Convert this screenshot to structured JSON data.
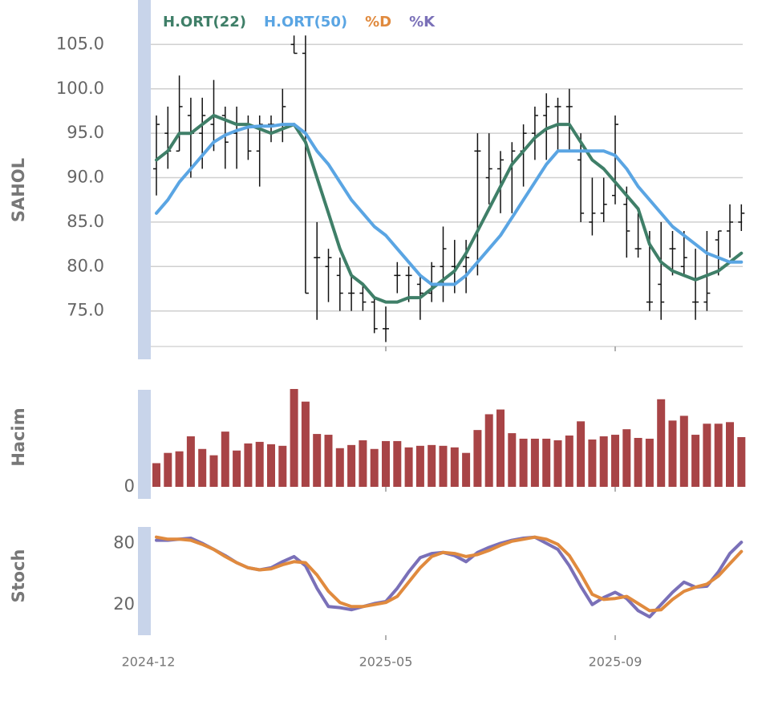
{
  "chart_data": [
    {
      "type": "ohlc",
      "ylabel": "SAHOL",
      "ylim": [
        71,
        110
      ],
      "yticks": [
        {
          "value": 75,
          "label": "75.0"
        },
        {
          "value": 80,
          "label": "80.0"
        },
        {
          "value": 85,
          "label": "85.0"
        },
        {
          "value": 90,
          "label": "90.0"
        },
        {
          "value": 95,
          "label": "95.0"
        },
        {
          "value": 100,
          "label": "100.0"
        },
        {
          "value": 105,
          "label": "105.0"
        }
      ],
      "grid": true,
      "color": "#111111",
      "open": [
        91,
        95,
        93,
        97,
        95,
        96,
        97,
        95,
        96,
        93,
        96,
        96,
        105,
        104,
        81,
        80,
        79,
        77,
        77,
        76,
        73,
        79,
        79,
        78,
        77,
        80,
        80,
        80,
        93,
        90,
        91,
        91,
        93,
        95,
        97,
        98,
        98,
        92,
        85,
        86,
        88,
        87,
        82,
        76,
        78,
        82,
        80,
        76,
        76,
        83,
        84,
        85
      ],
      "high": [
        97,
        98,
        101.5,
        99,
        99,
        101,
        98,
        98,
        97,
        97,
        97,
        100,
        106,
        106,
        85,
        82,
        81,
        79,
        78,
        76.5,
        75.5,
        80.5,
        80,
        79,
        80.5,
        84.5,
        83,
        83,
        95,
        95,
        93,
        94,
        96,
        98,
        99.5,
        99,
        100,
        95,
        90,
        90,
        97,
        89,
        86,
        84,
        85,
        84,
        84,
        82,
        84,
        84,
        87,
        87
      ],
      "low": [
        88,
        91,
        93,
        90,
        91,
        93,
        91,
        91,
        92,
        89,
        94,
        94,
        104,
        77,
        74,
        76,
        75,
        75,
        75,
        72.5,
        71.5,
        77,
        76,
        74,
        76,
        76,
        77,
        77,
        79,
        87,
        86,
        86,
        89,
        92,
        92,
        93,
        93,
        85,
        83.5,
        85,
        87,
        81,
        81,
        75,
        74,
        79,
        79,
        74,
        75,
        79,
        81,
        84
      ],
      "close": [
        96,
        93,
        98,
        95,
        97,
        97,
        94,
        96,
        93,
        96,
        96,
        98,
        104,
        77,
        81,
        81,
        77,
        77,
        76,
        73,
        73,
        79,
        79,
        77,
        80,
        82,
        80,
        81,
        93,
        91,
        92,
        93,
        95,
        97,
        98,
        98,
        98,
        86,
        86,
        87,
        96,
        84,
        82,
        76,
        76,
        82,
        81,
        76,
        77,
        84,
        85,
        86
      ],
      "series": [
        {
          "name": "H.ORT(22)",
          "color": "#3f7f68",
          "values": [
            92,
            93,
            95,
            95,
            96,
            97,
            96.5,
            96,
            96,
            95.5,
            95,
            95.5,
            96,
            94,
            90,
            86,
            82,
            79,
            78,
            76.5,
            76,
            76,
            76.5,
            76.5,
            77.5,
            78.5,
            79.5,
            81.5,
            84,
            86.5,
            89,
            91.5,
            93,
            94.5,
            95.5,
            96,
            96,
            94,
            92,
            91,
            89.5,
            88,
            86.5,
            82.5,
            80.5,
            79.5,
            79,
            78.5,
            79,
            79.5,
            80.5,
            81.5
          ]
        },
        {
          "name": "H.ORT(50)",
          "color": "#5aa5e3",
          "values": [
            86,
            87.5,
            89.5,
            91,
            92.5,
            94,
            94.8,
            95.3,
            95.7,
            95.8,
            95.8,
            96,
            96,
            95,
            93,
            91.5,
            89.5,
            87.5,
            86,
            84.5,
            83.5,
            82,
            80.5,
            79,
            78,
            78,
            78,
            79,
            80.5,
            82,
            83.5,
            85.5,
            87.5,
            89.5,
            91.5,
            93,
            93,
            93,
            93,
            93,
            92.5,
            91,
            89,
            87.5,
            86,
            84.5,
            83.5,
            82.5,
            81.5,
            81,
            80.5,
            80.5
          ]
        }
      ]
    },
    {
      "type": "bar",
      "ylabel": "Hacim",
      "ylim": [
        0,
        125
      ],
      "yticks": [
        0
      ],
      "color": "#a84446",
      "values": [
        30,
        43,
        45,
        64,
        48,
        40,
        70,
        46,
        55,
        57,
        54,
        52,
        124,
        108,
        67,
        66,
        49,
        53,
        59,
        48,
        58,
        58,
        50,
        52,
        53,
        52,
        50,
        43,
        72,
        92,
        98,
        68,
        61,
        61,
        61,
        59,
        65,
        83,
        60,
        64,
        66,
        73,
        62,
        61,
        111,
        84,
        90,
        66,
        80,
        80,
        82,
        63
      ]
    },
    {
      "type": "line",
      "ylabel": "Stoch",
      "ylim": [
        -10,
        96
      ],
      "yticks": [
        20,
        80
      ],
      "categories": [
        "2024-12",
        null,
        null,
        null,
        null,
        null,
        null,
        null,
        null,
        null,
        null,
        null,
        null,
        null,
        null,
        null,
        null,
        null,
        null,
        null,
        "2025-05",
        null,
        null,
        null,
        null,
        null,
        null,
        null,
        null,
        null,
        null,
        null,
        null,
        null,
        null,
        null,
        null,
        null,
        null,
        null,
        "2025-09",
        null,
        null,
        null,
        null,
        null,
        null,
        null,
        null,
        null,
        null,
        null
      ],
      "series": [
        {
          "name": "%D",
          "color": "#e08a3e",
          "values": [
            86,
            84,
            84,
            83,
            79,
            74,
            67,
            61,
            56,
            54,
            55,
            59,
            62,
            61,
            49,
            33,
            22,
            18,
            18,
            20,
            22,
            28,
            42,
            56,
            67,
            71,
            70,
            67,
            69,
            73,
            78,
            82,
            84,
            86,
            84,
            79,
            68,
            50,
            30,
            25,
            26,
            28,
            21,
            14,
            15,
            25,
            33,
            37,
            40,
            48,
            60,
            72
          ]
        },
        {
          "name": "%K",
          "color": "#7a70b8",
          "values": [
            83,
            83,
            84,
            85,
            80,
            74,
            68,
            61,
            56,
            54,
            56,
            62,
            67,
            58,
            36,
            18,
            17,
            15,
            18,
            21,
            23,
            36,
            52,
            66,
            70,
            71,
            68,
            62,
            71,
            76,
            80,
            83,
            85,
            86,
            80,
            74,
            58,
            38,
            20,
            27,
            32,
            26,
            14,
            8,
            20,
            32,
            42,
            37,
            38,
            52,
            70,
            81
          ]
        }
      ]
    }
  ]
}
